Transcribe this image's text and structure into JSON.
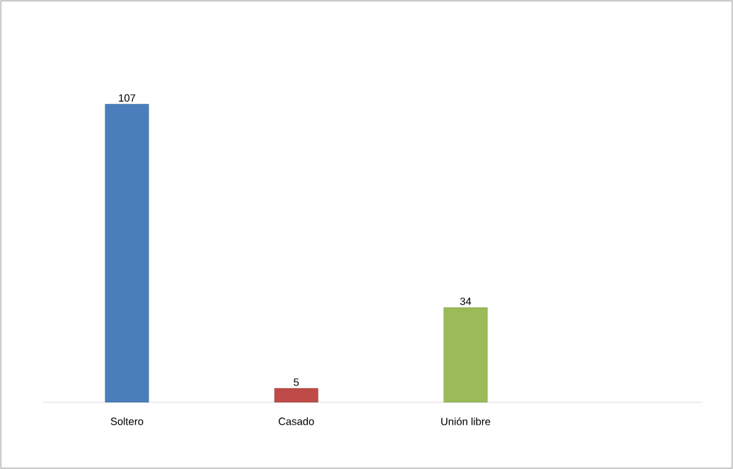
{
  "chart_data": {
    "type": "bar",
    "categories": [
      "Soltero",
      "Casado",
      "Unión libre"
    ],
    "values": [
      107,
      5,
      34
    ],
    "colors": [
      "#4a7ebb",
      "#be4b48",
      "#9bbb59"
    ],
    "data_labels": true
  }
}
